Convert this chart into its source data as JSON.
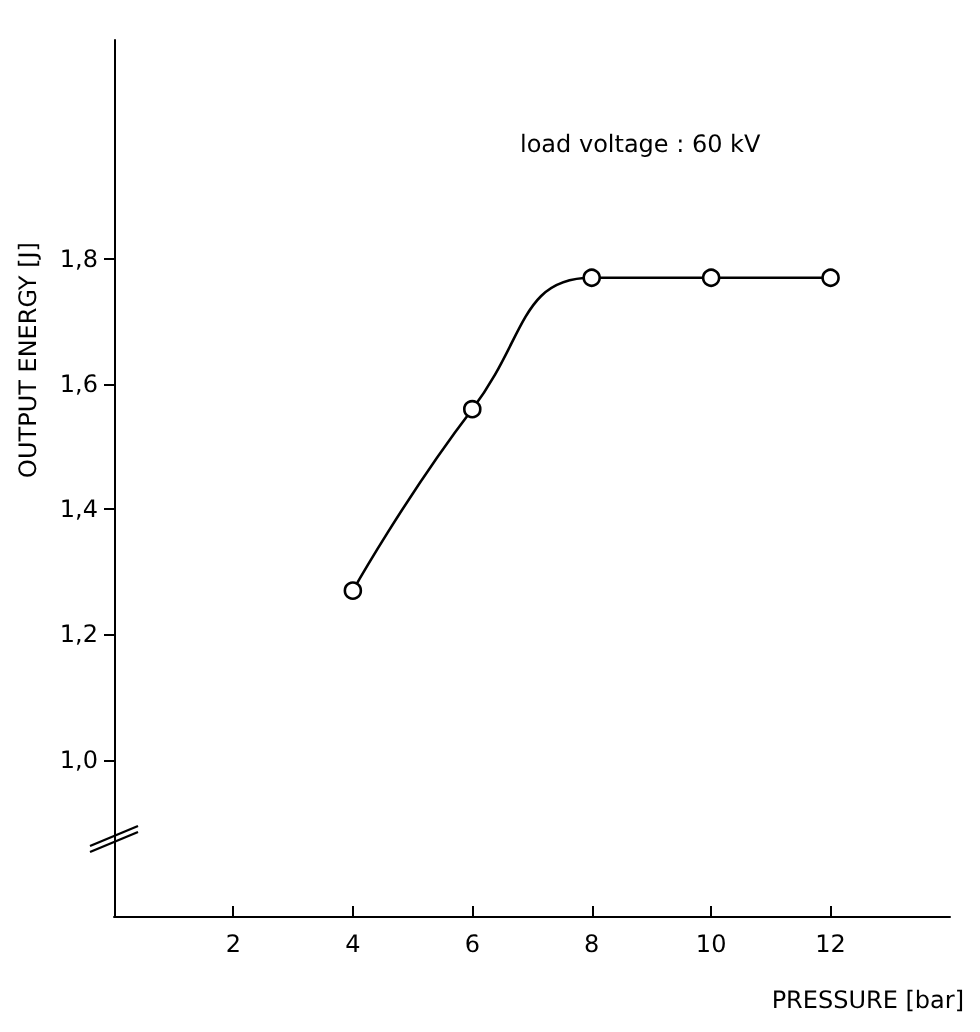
{
  "chart_data": {
    "type": "line",
    "xlabel": "PRESSURE [bar]",
    "ylabel": "OUTPUT ENERGY [J]",
    "annotations": [
      "load voltage : 60 kV"
    ],
    "x": [
      4,
      6,
      8,
      10,
      12
    ],
    "series": [
      {
        "color": "#000000",
        "values": [
          1.27,
          1.56,
          1.77,
          1.77,
          1.77
        ]
      }
    ],
    "xlim": [
      0,
      14
    ],
    "xticks": [
      2,
      4,
      6,
      8,
      10,
      12
    ],
    "ylim": [
      0.75,
      2.15
    ],
    "yticks": [
      {
        "value": 1.0,
        "label": "1,0"
      },
      {
        "value": 1.2,
        "label": "1,2"
      },
      {
        "value": 1.4,
        "label": "1,4"
      },
      {
        "value": 1.6,
        "label": "1,6"
      },
      {
        "value": 1.8,
        "label": "1,8"
      }
    ],
    "grid": false,
    "marker": "circle",
    "line_style": "solid"
  }
}
